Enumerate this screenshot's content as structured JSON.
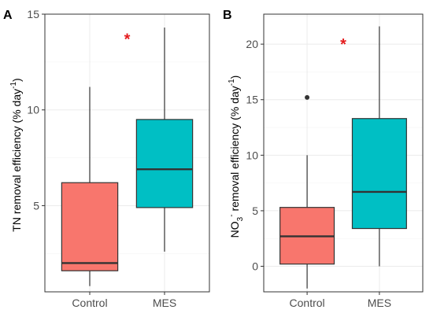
{
  "colors": {
    "control": "#F8766D",
    "mes": "#00BFC4",
    "significance": "#E41A1C"
  },
  "chart_data": [
    {
      "type": "box",
      "panel_label": "A",
      "title": "",
      "xlabel": "",
      "ylabel": "TN removal efficiency (% day⁻¹)",
      "ylabel_parts": {
        "main": "TN removal efficiency (% day",
        "sup": "-1",
        "end": ")"
      },
      "ylim": [
        0.5,
        15
      ],
      "yticks": [
        5,
        10,
        15
      ],
      "categories": [
        "Control",
        "MES"
      ],
      "boxes": [
        {
          "name": "Control",
          "min": 0.8,
          "q1": 1.6,
          "median": 2.0,
          "q3": 6.2,
          "max": 11.2,
          "outliers": []
        },
        {
          "name": "MES",
          "min": 2.6,
          "q1": 4.9,
          "median": 6.9,
          "q3": 9.5,
          "max": 14.3,
          "outliers": []
        }
      ],
      "annotation": {
        "text": "*",
        "x": 1.5,
        "y": 14.0
      }
    },
    {
      "type": "box",
      "panel_label": "B",
      "title": "",
      "xlabel": "",
      "ylabel": "NO₃⁻ removal efficiency (% day⁻¹)",
      "ylabel_parts": {
        "main1": "NO",
        "sub": "3",
        "sup1": "-",
        "main2": " removal efficiency (% day",
        "sup2": "-1",
        "end": ")"
      },
      "ylim": [
        -2.3,
        22.7
      ],
      "yticks": [
        0,
        5,
        10,
        15,
        20
      ],
      "categories": [
        "Control",
        "MES"
      ],
      "boxes": [
        {
          "name": "Control",
          "min": -2.0,
          "q1": 0.2,
          "median": 2.7,
          "q3": 5.3,
          "max": 10.0,
          "outliers": [
            15.2
          ]
        },
        {
          "name": "MES",
          "min": 0.0,
          "q1": 3.4,
          "median": 6.7,
          "q3": 13.3,
          "max": 21.6,
          "outliers": []
        }
      ],
      "annotation": {
        "text": "*",
        "x": 1.5,
        "y": 20.5
      }
    }
  ]
}
